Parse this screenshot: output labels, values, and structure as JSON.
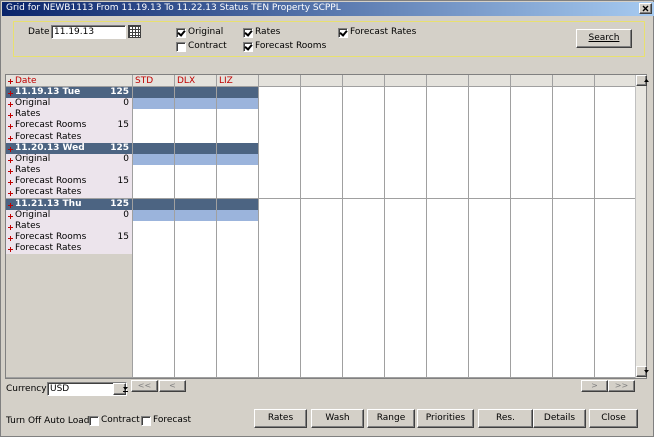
{
  "window": {
    "title": "Grid for NEWB1113 From 11.19.13 To 11.22.13 Status TEN Property SCPPL"
  },
  "filters": {
    "date_label": "Date",
    "date_value": "11.19.13",
    "checkboxes": [
      {
        "label": "Original",
        "checked": true
      },
      {
        "label": "Contract",
        "checked": false
      },
      {
        "label": "Rates",
        "checked": true
      },
      {
        "label": "Forecast Rooms",
        "checked": true
      },
      {
        "label": "Forecast Rates",
        "checked": true
      }
    ],
    "search": "Search"
  },
  "grid": {
    "header": "Date",
    "columns": [
      "STD",
      "DLX",
      "LIZ"
    ],
    "days": [
      {
        "label": "11.19.13 Tue",
        "total": 125,
        "rows": [
          {
            "label": "Original",
            "value": 0
          },
          {
            "label": "Rates"
          },
          {
            "label": "Forecast Rooms",
            "value": 15
          },
          {
            "label": "Forecast Rates"
          }
        ]
      },
      {
        "label": "11.20.13 Wed",
        "total": 125,
        "rows": [
          {
            "label": "Original",
            "value": 0
          },
          {
            "label": "Rates"
          },
          {
            "label": "Forecast Rooms",
            "value": 15
          },
          {
            "label": "Forecast Rates"
          }
        ]
      },
      {
        "label": "11.21.13 Thu",
        "total": 125,
        "rows": [
          {
            "label": "Original",
            "value": 0
          },
          {
            "label": "Rates"
          },
          {
            "label": "Forecast Rooms",
            "value": 15
          },
          {
            "label": "Forecast Rates"
          }
        ]
      }
    ]
  },
  "currency": {
    "label": "Currency",
    "value": "USD"
  },
  "nav": [
    "<<",
    "<",
    ">",
    ">>"
  ],
  "auto_load": {
    "label": "Turn Off Auto Load",
    "checkboxes": [
      {
        "label": "Contract",
        "checked": false
      },
      {
        "label": "Forecast",
        "checked": false
      }
    ]
  },
  "buttons": [
    "Rates",
    "Wash",
    "Range",
    "Priorities",
    "Res.",
    "Details",
    "Close"
  ]
}
